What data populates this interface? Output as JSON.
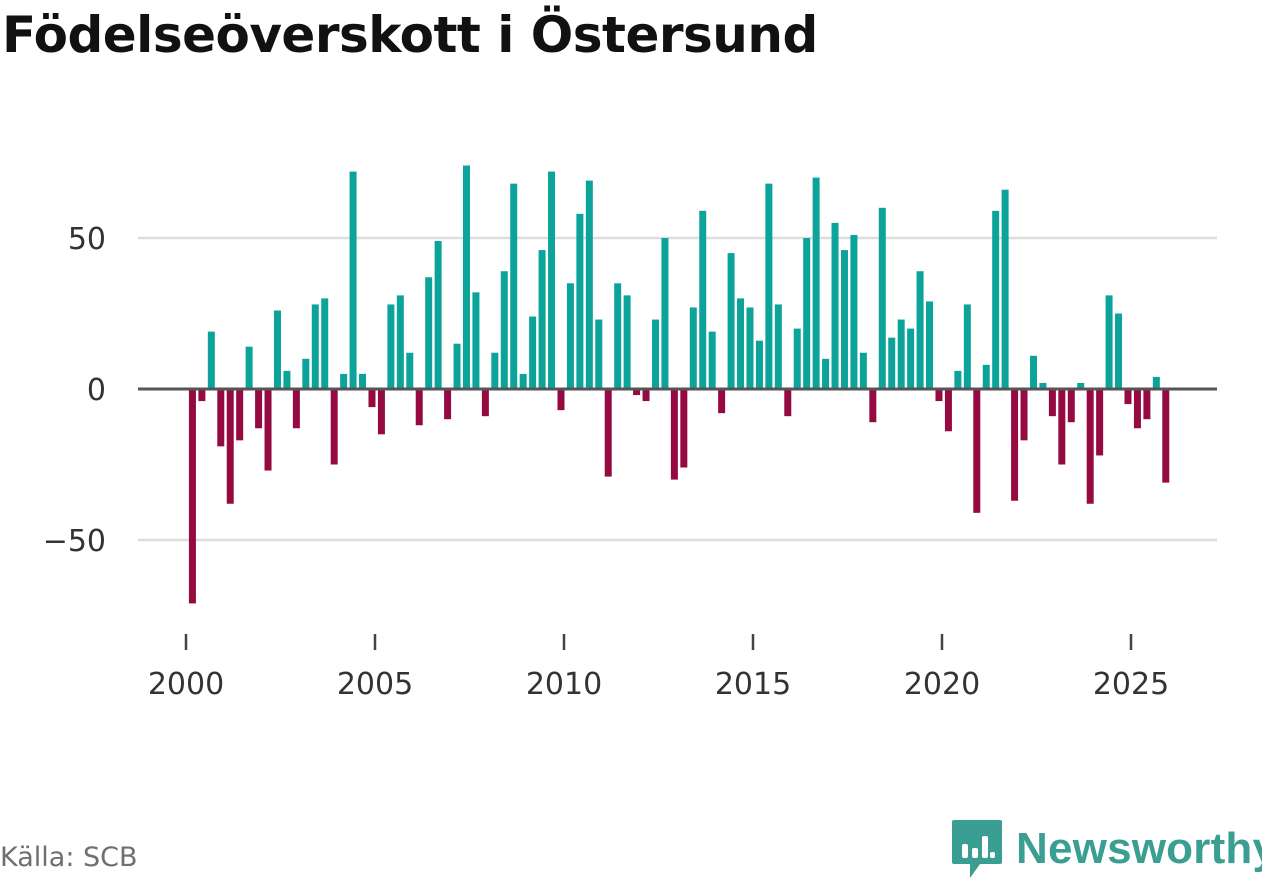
{
  "title": "Födelseöverskott i Östersund",
  "source": "Källa: SCB",
  "brand": {
    "name": "Newsworthy",
    "logo_icon": "newsworthy-logo-icon",
    "color": "#3a9e93"
  },
  "colors": {
    "positive": "#0ca39a",
    "negative": "#960a42",
    "grid": "#dddddd",
    "zero_line": "#555555"
  },
  "chart_data": {
    "type": "bar",
    "title": "Födelseöverskott i Östersund",
    "xlabel": "",
    "ylabel": "",
    "frequency": "monthly",
    "ylim": [
      -75,
      75
    ],
    "y_ticks": [
      50,
      0,
      -50
    ],
    "y_tick_labels": [
      "50",
      "0",
      "−50"
    ],
    "x_ticks": [
      2000,
      2005,
      2010,
      2015,
      2020,
      2025
    ],
    "x_tick_labels": [
      "2000",
      "2005",
      "2010",
      "2015",
      "2020",
      "2025"
    ],
    "series": [
      {
        "name": "Födelseöverskott",
        "x": [
          2000.17,
          2000.42,
          2000.67,
          2000.92,
          2001.17,
          2001.42,
          2001.67,
          2001.92,
          2002.17,
          2002.42,
          2002.67,
          2002.92,
          2003.17,
          2003.42,
          2003.67,
          2003.92,
          2004.17,
          2004.42,
          2004.67,
          2004.92,
          2005.17,
          2005.42,
          2005.67,
          2005.92,
          2006.17,
          2006.42,
          2006.67,
          2006.92,
          2007.17,
          2007.42,
          2007.67,
          2007.92,
          2008.17,
          2008.42,
          2008.67,
          2008.92,
          2009.17,
          2009.42,
          2009.67,
          2009.92,
          2010.17,
          2010.42,
          2010.67,
          2010.92,
          2011.17,
          2011.42,
          2011.67,
          2011.92,
          2012.17,
          2012.42,
          2012.67,
          2012.92,
          2013.17,
          2013.42,
          2013.67,
          2013.92,
          2014.17,
          2014.42,
          2014.67,
          2014.92,
          2015.17,
          2015.42,
          2015.67,
          2015.92,
          2016.17,
          2016.42,
          2016.67,
          2016.92,
          2017.17,
          2017.42,
          2017.67,
          2017.92,
          2018.17,
          2018.42,
          2018.67,
          2018.92,
          2019.17,
          2019.42,
          2019.67,
          2019.92,
          2020.17,
          2020.42,
          2020.67,
          2020.92,
          2021.17,
          2021.42,
          2021.67,
          2021.92,
          2022.17,
          2022.42,
          2022.67,
          2022.92,
          2023.17,
          2023.42,
          2023.67,
          2023.92,
          2024.17,
          2024.42,
          2024.67,
          2024.92,
          2025.17,
          2025.42,
          2025.67,
          2025.92
        ],
        "values": [
          -71,
          -4,
          19,
          -19,
          -38,
          -17,
          14,
          -13,
          -27,
          26,
          6,
          -13,
          10,
          28,
          30,
          -25,
          5,
          72,
          5,
          -6,
          -15,
          28,
          31,
          12,
          -12,
          37,
          49,
          -10,
          15,
          74,
          32,
          -9,
          12,
          39,
          68,
          5,
          24,
          46,
          72,
          -7,
          35,
          58,
          69,
          23,
          -29,
          35,
          31,
          -2,
          -4,
          23,
          50,
          -30,
          -26,
          27,
          59,
          19,
          -8,
          45,
          30,
          27,
          16,
          68,
          28,
          -9,
          20,
          50,
          70,
          10,
          55,
          46,
          51,
          12,
          -11,
          60,
          17,
          23,
          20,
          39,
          29,
          -4,
          -14,
          6,
          28,
          -41,
          8,
          59,
          66,
          -37,
          -17,
          11,
          2,
          -9,
          -25,
          -11,
          2,
          -38,
          -22,
          31,
          25,
          -5,
          -13,
          -10,
          4,
          -31
        ]
      }
    ]
  }
}
